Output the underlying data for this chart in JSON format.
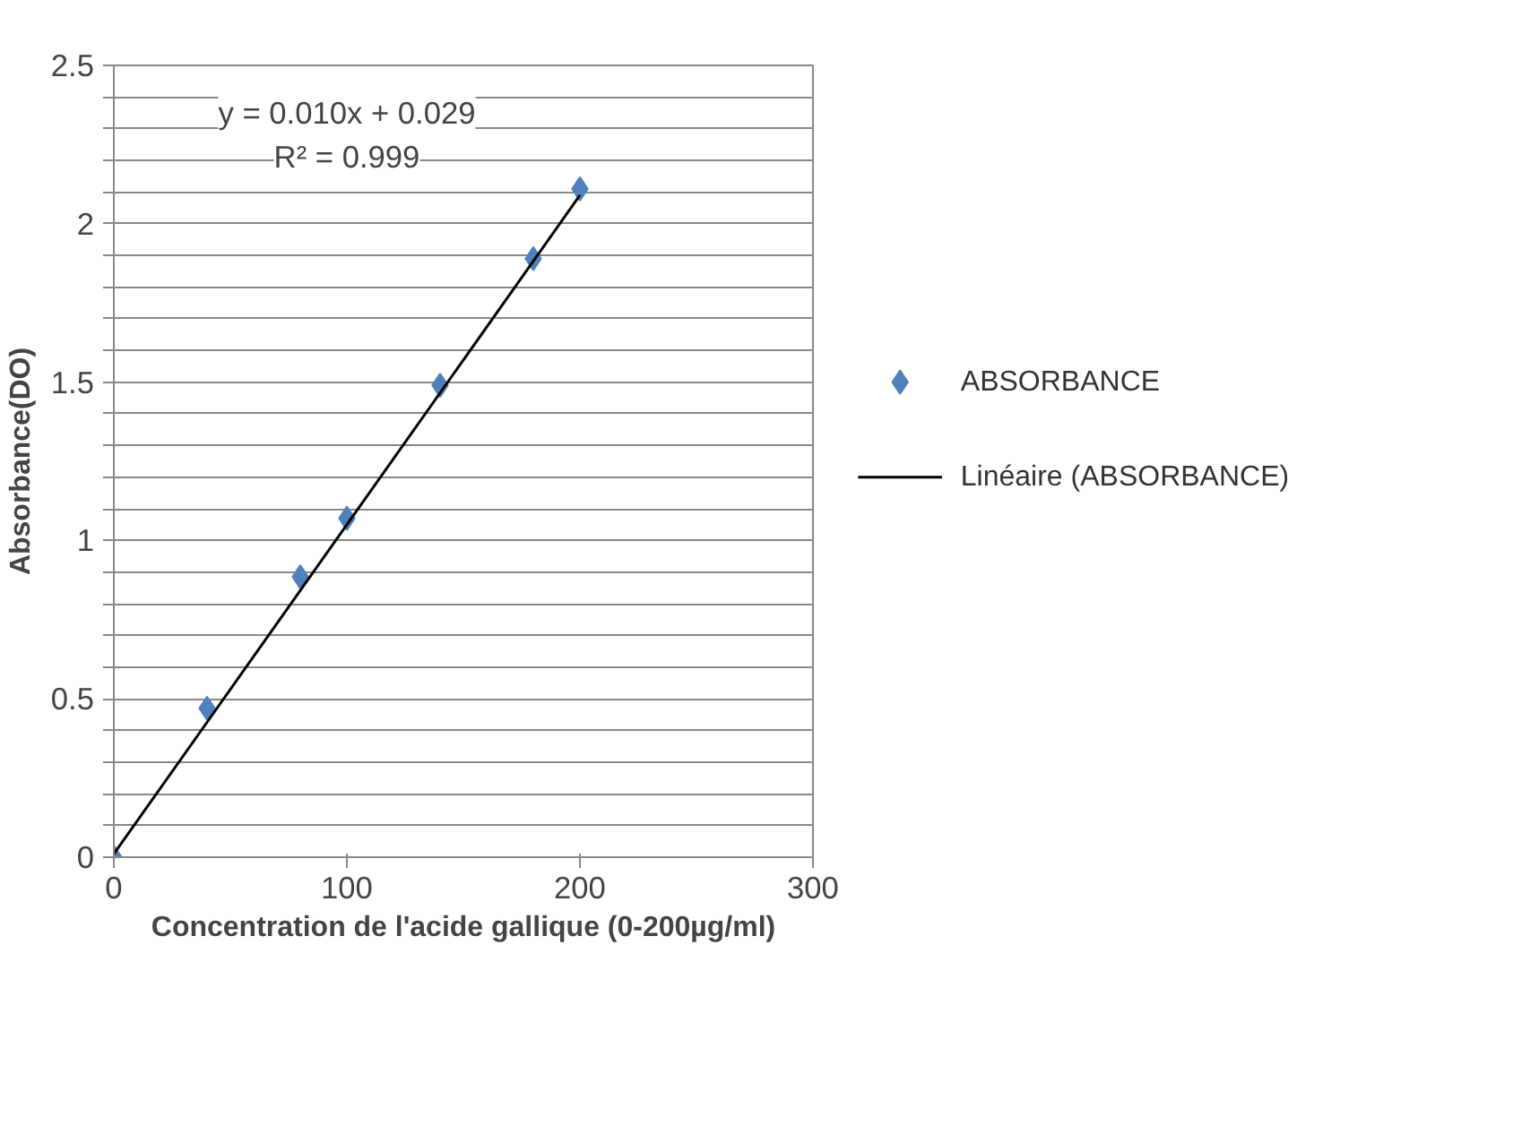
{
  "chart_data": {
    "type": "scatter",
    "xlabel": "Concentration de l'acide gallique (0-200µg/ml)",
    "ylabel": "Absorbance(DO)",
    "x": [
      0,
      40,
      80,
      100,
      140,
      180,
      200
    ],
    "series": [
      {
        "name": "ABSORBANCE",
        "color": "#4f81bd",
        "values": [
          0.0,
          0.47,
          0.885,
          1.07,
          1.49,
          1.89,
          2.11
        ],
        "marker": "diamond"
      },
      {
        "name": "Linéaire (ABSORBANCE)",
        "type": "line",
        "color": "#000000",
        "x": [
          0,
          200
        ],
        "values": [
          0.01,
          2.09
        ],
        "marker": "none",
        "line_style": "solid"
      }
    ],
    "annotations": [
      "y = 0.010x + 0.029",
      "R² = 0.999"
    ],
    "xlim": [
      0,
      300
    ],
    "xticks": [
      0,
      100,
      200,
      300
    ],
    "ylim": [
      0,
      2.5
    ],
    "yticks": [
      0,
      {
        "value": 0.1,
        "label": null
      },
      {
        "value": 0.2,
        "label": null
      },
      {
        "value": 0.3,
        "label": null
      },
      {
        "value": 0.4,
        "label": null
      },
      0.5,
      {
        "value": 0.6,
        "label": null
      },
      {
        "value": 0.7,
        "label": null
      },
      {
        "value": 0.8,
        "label": null
      },
      {
        "value": 0.9,
        "label": null
      },
      1,
      {
        "value": 1.1,
        "label": null
      },
      {
        "value": 1.2,
        "label": null
      },
      {
        "value": 1.3,
        "label": null
      },
      {
        "value": 1.4,
        "label": null
      },
      1.5,
      {
        "value": 1.6,
        "label": null
      },
      {
        "value": 1.7,
        "label": null
      },
      {
        "value": 1.8,
        "label": null
      },
      {
        "value": 1.9,
        "label": null
      },
      2,
      {
        "value": 2.1,
        "label": null
      },
      {
        "value": 2.2,
        "label": null
      },
      {
        "value": 2.3,
        "label": null
      },
      {
        "value": 2.4,
        "label": null
      },
      2.5
    ],
    "grid": "y",
    "legend": "right"
  }
}
